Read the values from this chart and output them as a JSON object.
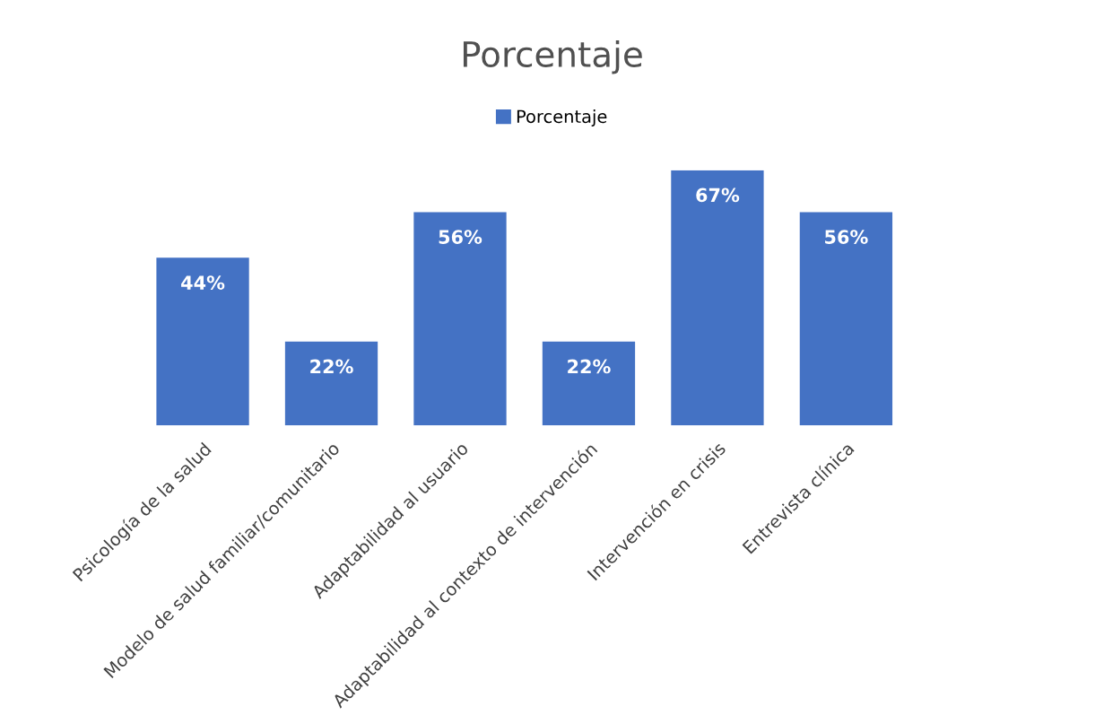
{
  "chart_data": {
    "type": "bar",
    "title": "Porcentaje",
    "categories": [
      "Psicología de la salud",
      "Modelo de salud familiar/comunitario",
      "Adaptabilidad al usuario",
      "Adaptabilidad al contexto de intervención",
      "Intervención en crisis",
      "Entrevista clínica"
    ],
    "series": [
      {
        "name": "Porcentaje",
        "color": "#4472c4",
        "values": [
          44,
          22,
          56,
          22,
          67,
          56
        ],
        "value_labels": [
          "44%",
          "22%",
          "56%",
          "22%",
          "67%",
          "56%"
        ]
      }
    ],
    "legend": "top",
    "grid": false
  }
}
